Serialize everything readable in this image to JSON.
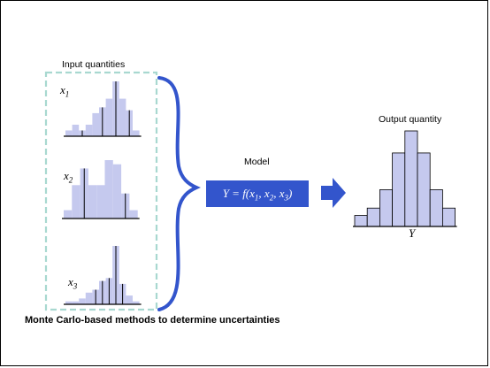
{
  "labels": {
    "input_quantities": "Input quantities",
    "model": "Model",
    "output_quantity": "Output quantity",
    "caption": "Monte Carlo-based methods to determine uncertainties"
  },
  "variables": {
    "x1": {
      "base": "x",
      "sub": "1"
    },
    "x2": {
      "base": "x",
      "sub": "2"
    },
    "x3": {
      "base": "x",
      "sub": "3"
    },
    "y": "Y"
  },
  "model_equation": {
    "lhs": "Y = f(x",
    "s1": "1",
    "sep1": ", x",
    "s2": "2",
    "sep2": ", x",
    "s3": "3",
    "rhs": ")"
  },
  "colors": {
    "bar_fill": "#c5c9ee",
    "dashed_border": "#a8d8d0",
    "brace": "#3355cc",
    "model_box": "#3355cc",
    "arrow": "#3355cc"
  },
  "histograms": {
    "x1": [
      2,
      4,
      2,
      4,
      8,
      10,
      13,
      19,
      13,
      9,
      2
    ],
    "x2": [
      2,
      8,
      12,
      8,
      8,
      14,
      13,
      6,
      2
    ],
    "x3": [
      1,
      1,
      2,
      4,
      5,
      8,
      9,
      20,
      7,
      3,
      1
    ],
    "y": [
      3,
      5,
      10,
      20,
      26,
      20,
      10,
      5
    ]
  }
}
